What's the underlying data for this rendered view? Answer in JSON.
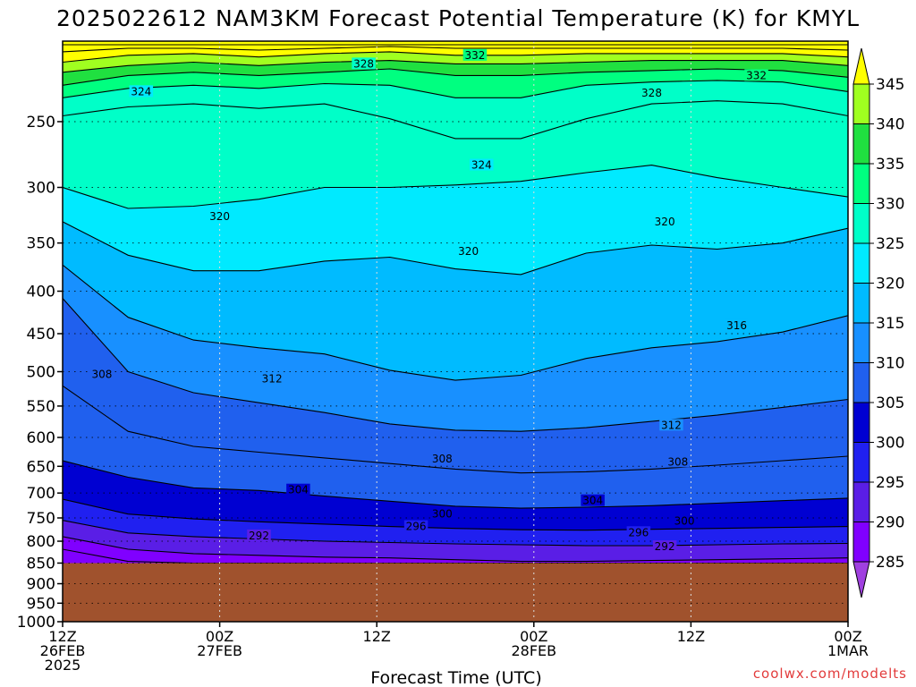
{
  "chart_data": {
    "type": "heatmap",
    "title": "2025022612 NAM3KM Forecast Potential Temperature (K) for KMYL",
    "xlabel": "Forecast Time (UTC)",
    "ylabel": "",
    "credit": "coolwx.com/modelts",
    "y_scale": "log",
    "y_inverted": true,
    "ylim": [
      1000,
      200
    ],
    "y_ticks": [
      250,
      300,
      350,
      400,
      450,
      500,
      550,
      600,
      650,
      700,
      750,
      800,
      850,
      900,
      950,
      1000
    ],
    "x_ticks": [
      {
        "hour": 0,
        "line1": "12Z",
        "line2": "26FEB",
        "line3": "2025"
      },
      {
        "hour": 12,
        "line1": "00Z",
        "line2": "27FEB",
        "line3": ""
      },
      {
        "hour": 24,
        "line1": "12Z",
        "line2": "",
        "line3": ""
      },
      {
        "hour": 36,
        "line1": "00Z",
        "line2": "28FEB",
        "line3": ""
      },
      {
        "hour": 48,
        "line1": "12Z",
        "line2": "",
        "line3": ""
      },
      {
        "hour": 60,
        "line1": "00Z",
        "line2": "1MAR",
        "line3": ""
      }
    ],
    "xlim": [
      0,
      60
    ],
    "grid": true,
    "surface_pressure": 850,
    "surface_color": "#a0522d",
    "colorbar": {
      "ticks": [
        285,
        290,
        295,
        300,
        305,
        310,
        315,
        320,
        325,
        330,
        335,
        340,
        345
      ],
      "bins": [
        {
          "from": 280,
          "to": 285,
          "color": "#a040e0"
        },
        {
          "from": 285,
          "to": 290,
          "color": "#8000ff"
        },
        {
          "from": 290,
          "to": 295,
          "color": "#5a1ee6"
        },
        {
          "from": 295,
          "to": 300,
          "color": "#2020f0"
        },
        {
          "from": 300,
          "to": 305,
          "color": "#0000d2"
        },
        {
          "from": 305,
          "to": 310,
          "color": "#2060ee"
        },
        {
          "from": 310,
          "to": 315,
          "color": "#1890ff"
        },
        {
          "from": 315,
          "to": 320,
          "color": "#00bbff"
        },
        {
          "from": 320,
          "to": 325,
          "color": "#00eaff"
        },
        {
          "from": 325,
          "to": 330,
          "color": "#00ffc8"
        },
        {
          "from": 330,
          "to": 335,
          "color": "#00ff80"
        },
        {
          "from": 335,
          "to": 340,
          "color": "#20e040"
        },
        {
          "from": 340,
          "to": 345,
          "color": "#a0ff20"
        },
        {
          "from": 345,
          "to": 350,
          "color": "#ffff00"
        }
      ]
    },
    "contour_labels": [
      {
        "text": "332",
        "hour": 31.5,
        "p": 208
      },
      {
        "text": "328",
        "hour": 23.0,
        "p": 213
      },
      {
        "text": "332",
        "hour": 53.0,
        "p": 220
      },
      {
        "text": "324",
        "hour": 6.0,
        "p": 230
      },
      {
        "text": "328",
        "hour": 45.0,
        "p": 231
      },
      {
        "text": "324",
        "hour": 32.0,
        "p": 282
      },
      {
        "text": "320",
        "hour": 12.0,
        "p": 325
      },
      {
        "text": "320",
        "hour": 46.0,
        "p": 330
      },
      {
        "text": "320",
        "hour": 31.0,
        "p": 358
      },
      {
        "text": "316",
        "hour": 51.5,
        "p": 440
      },
      {
        "text": "308",
        "hour": 3.0,
        "p": 504
      },
      {
        "text": "312",
        "hour": 16.0,
        "p": 510
      },
      {
        "text": "312",
        "hour": 46.5,
        "p": 580
      },
      {
        "text": "308",
        "hour": 29.0,
        "p": 637
      },
      {
        "text": "308",
        "hour": 47.0,
        "p": 642
      },
      {
        "text": "304",
        "hour": 18.0,
        "p": 694
      },
      {
        "text": "304",
        "hour": 40.5,
        "p": 715
      },
      {
        "text": "300",
        "hour": 29.0,
        "p": 742
      },
      {
        "text": "296",
        "hour": 27.0,
        "p": 768
      },
      {
        "text": "300",
        "hour": 47.5,
        "p": 757
      },
      {
        "text": "296",
        "hour": 44.0,
        "p": 781
      },
      {
        "text": "292",
        "hour": 15.0,
        "p": 788
      },
      {
        "text": "292",
        "hour": 46.0,
        "p": 812
      }
    ],
    "iso_levels": [
      {
        "theta": 350,
        "p": [
          202,
          202,
          202,
          202,
          202,
          202,
          202,
          202,
          202,
          202,
          202,
          202,
          202
        ]
      },
      {
        "theta": 346,
        "p": [
          206,
          204,
          204,
          205,
          204,
          203,
          204,
          204,
          204,
          204,
          204,
          204,
          205
        ]
      },
      {
        "theta": 342,
        "p": [
          212,
          208,
          207,
          209,
          207,
          206,
          208,
          208,
          207,
          207,
          207,
          207,
          209
        ]
      },
      {
        "theta": 338,
        "p": [
          218,
          214,
          212,
          214,
          212,
          211,
          213,
          213,
          212,
          211,
          211,
          211,
          214
        ]
      },
      {
        "theta": 334,
        "p": [
          226,
          220,
          218,
          220,
          218,
          216,
          220,
          220,
          218,
          217,
          216,
          217,
          221
        ]
      },
      {
        "theta": 330,
        "p": [
          234,
          228,
          226,
          228,
          225,
          226,
          234,
          234,
          226,
          224,
          223,
          224,
          230
        ]
      },
      {
        "theta": 326,
        "p": [
          246,
          240,
          238,
          241,
          238,
          248,
          262,
          262,
          248,
          238,
          236,
          238,
          246
        ]
      },
      {
        "theta": 322,
        "p": [
          300,
          318,
          316,
          310,
          300,
          300,
          298,
          295,
          288,
          282,
          292,
          300,
          308
        ]
      },
      {
        "theta": 318,
        "p": [
          330,
          362,
          378,
          378,
          368,
          364,
          376,
          382,
          360,
          352,
          356,
          350,
          336
        ]
      },
      {
        "theta": 314,
        "p": [
          372,
          430,
          458,
          468,
          476,
          498,
          512,
          505,
          482,
          468,
          460,
          448,
          428
        ]
      },
      {
        "theta": 310,
        "p": [
          408,
          500,
          530,
          545,
          560,
          578,
          588,
          590,
          584,
          574,
          564,
          552,
          540
        ]
      },
      {
        "theta": 306,
        "p": [
          520,
          590,
          615,
          625,
          635,
          645,
          655,
          662,
          660,
          655,
          648,
          640,
          632
        ]
      },
      {
        "theta": 302,
        "p": [
          640,
          670,
          690,
          695,
          706,
          716,
          726,
          730,
          728,
          725,
          720,
          715,
          710
        ]
      },
      {
        "theta": 298,
        "p": [
          712,
          742,
          752,
          758,
          763,
          768,
          772,
          775,
          776,
          774,
          772,
          770,
          768
        ]
      },
      {
        "theta": 294,
        "p": [
          755,
          782,
          790,
          795,
          800,
          803,
          806,
          808,
          810,
          810,
          808,
          806,
          805
        ]
      },
      {
        "theta": 290,
        "p": [
          790,
          818,
          828,
          832,
          836,
          838,
          842,
          846,
          846,
          844,
          842,
          840,
          838
        ]
      },
      {
        "theta": 286,
        "p": [
          818,
          846,
          850,
          850,
          850,
          850,
          850,
          850,
          850,
          850,
          850,
          850,
          850
        ]
      }
    ]
  }
}
